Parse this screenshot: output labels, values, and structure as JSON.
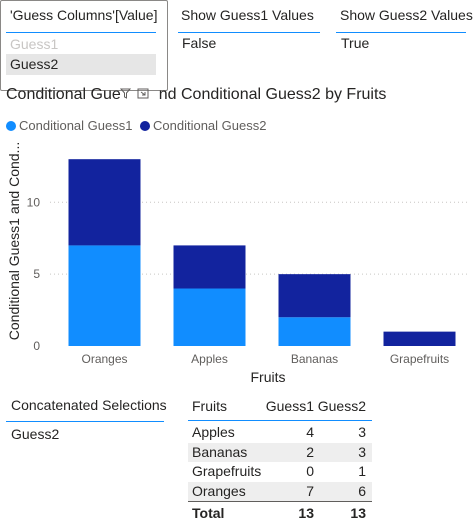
{
  "slicers": {
    "guess_columns": {
      "title": "'Guess Columns'[Value]",
      "items": [
        {
          "label": "Guess1",
          "selected": false
        },
        {
          "label": "Guess2",
          "selected": true
        }
      ]
    },
    "show_guess1": {
      "title": "Show Guess1 Values",
      "value": "False"
    },
    "show_guess2": {
      "title": "Show Guess2 Values",
      "value": "True"
    }
  },
  "chart_data": {
    "type": "bar",
    "stacked": true,
    "title": "Conditional Gue",
    "title_suffix": "nd Conditional Guess2 by Fruits",
    "xlabel": "Fruits",
    "ylabel": "Conditional Guess1 and Cond...",
    "categories": [
      "Oranges",
      "Apples",
      "Bananas",
      "Grapefruits"
    ],
    "series": [
      {
        "name": "Conditional Guess1",
        "values": [
          7,
          4,
          2,
          0
        ],
        "color": "#118dff"
      },
      {
        "name": "Conditional Guess2",
        "values": [
          6,
          3,
          3,
          1
        ],
        "color": "#12239e"
      }
    ],
    "yticks": [
      "0",
      "5",
      "10"
    ],
    "ylim": [
      0,
      13.5
    ],
    "grid": true,
    "legend_position": "top-left"
  },
  "concatenated": {
    "title": "Concatenated Selections",
    "value": "Guess2"
  },
  "table": {
    "headers": [
      "Fruits",
      "Guess1",
      "Guess2"
    ],
    "rows": [
      {
        "fruit": "Apples",
        "g1": "4",
        "g2": "3"
      },
      {
        "fruit": "Bananas",
        "g1": "2",
        "g2": "3"
      },
      {
        "fruit": "Grapefruits",
        "g1": "0",
        "g2": "1"
      },
      {
        "fruit": "Oranges",
        "g1": "7",
        "g2": "6"
      }
    ],
    "total": {
      "label": "Total",
      "g1": "13",
      "g2": "13"
    }
  },
  "icons": {
    "filter": "filter-icon",
    "focus": "focus-mode-icon"
  }
}
